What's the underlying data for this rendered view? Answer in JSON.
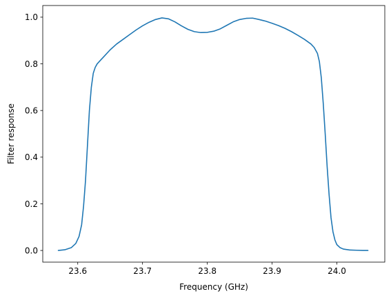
{
  "chart_data": {
    "type": "line",
    "title": "",
    "xlabel": "Frequency (GHz)",
    "ylabel": "Filter response",
    "xlim": [
      23.546,
      24.074
    ],
    "ylim": [
      -0.05,
      1.05
    ],
    "grid": false,
    "legend": "none",
    "xticks": [
      {
        "value": 23.6,
        "label": "23.6"
      },
      {
        "value": 23.7,
        "label": "23.7"
      },
      {
        "value": 23.8,
        "label": "23.8"
      },
      {
        "value": 23.9,
        "label": "23.9"
      },
      {
        "value": 24.0,
        "label": "24.0"
      }
    ],
    "yticks": [
      {
        "value": 0.0,
        "label": "0.0"
      },
      {
        "value": 0.2,
        "label": "0.2"
      },
      {
        "value": 0.4,
        "label": "0.4"
      },
      {
        "value": 0.6,
        "label": "0.6"
      },
      {
        "value": 0.8,
        "label": "0.8"
      },
      {
        "value": 1.0,
        "label": "1.0"
      }
    ],
    "series": [
      {
        "color": "#1f77b4",
        "x": [
          23.57,
          23.58,
          23.59,
          23.597,
          23.602,
          23.606,
          23.609,
          23.612,
          23.615,
          23.618,
          23.621,
          23.624,
          23.627,
          23.63,
          23.635,
          23.64,
          23.65,
          23.66,
          23.67,
          23.68,
          23.69,
          23.7,
          23.71,
          23.72,
          23.73,
          23.74,
          23.75,
          23.76,
          23.77,
          23.78,
          23.79,
          23.8,
          23.81,
          23.82,
          23.83,
          23.84,
          23.85,
          23.86,
          23.87,
          23.88,
          23.89,
          23.9,
          23.91,
          23.92,
          23.93,
          23.94,
          23.95,
          23.96,
          23.965,
          23.97,
          23.973,
          23.976,
          23.979,
          23.982,
          23.985,
          23.988,
          23.991,
          23.994,
          23.997,
          24.0,
          24.005,
          24.01,
          24.02,
          24.03,
          24.04,
          24.048
        ],
        "y": [
          0.0,
          0.003,
          0.012,
          0.03,
          0.06,
          0.11,
          0.19,
          0.3,
          0.45,
          0.6,
          0.7,
          0.76,
          0.785,
          0.8,
          0.815,
          0.83,
          0.86,
          0.885,
          0.905,
          0.925,
          0.945,
          0.963,
          0.978,
          0.99,
          0.997,
          0.993,
          0.98,
          0.963,
          0.948,
          0.938,
          0.934,
          0.935,
          0.94,
          0.95,
          0.965,
          0.98,
          0.99,
          0.995,
          0.996,
          0.99,
          0.983,
          0.974,
          0.964,
          0.952,
          0.938,
          0.922,
          0.905,
          0.885,
          0.87,
          0.845,
          0.81,
          0.74,
          0.63,
          0.5,
          0.36,
          0.24,
          0.14,
          0.08,
          0.045,
          0.025,
          0.012,
          0.006,
          0.002,
          0.001,
          0.0,
          0.0
        ]
      }
    ]
  }
}
